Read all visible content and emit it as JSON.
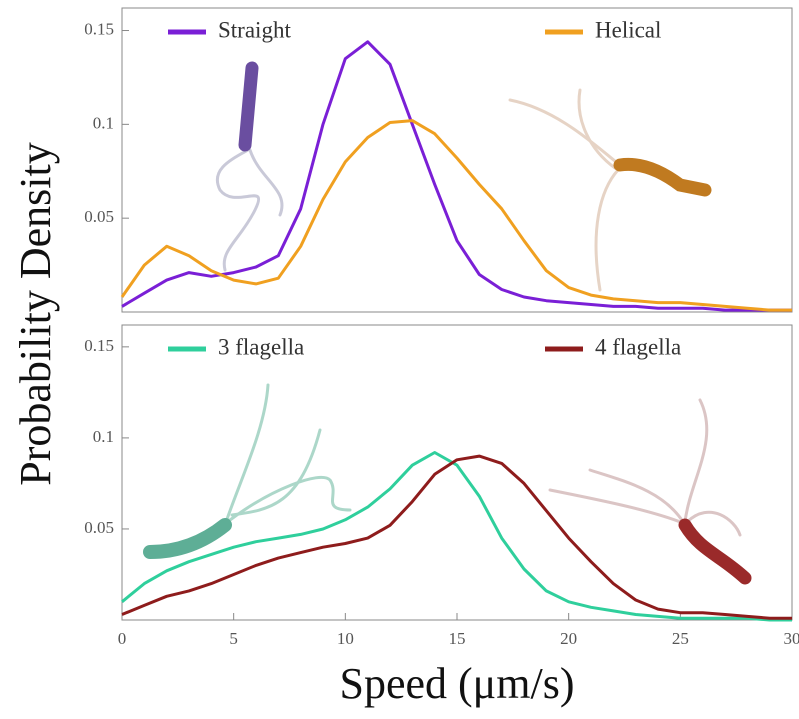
{
  "chart_data": [
    {
      "type": "line",
      "ylabel": "Probability Density",
      "x": [
        0,
        1,
        2,
        3,
        4,
        5,
        6,
        7,
        8,
        9,
        10,
        11,
        12,
        13,
        14,
        15,
        16,
        17,
        18,
        19,
        20,
        21,
        22,
        23,
        24,
        25,
        26,
        27,
        28,
        29,
        30
      ],
      "series": [
        {
          "name": "Straight",
          "color": "#7a1fd6",
          "values": [
            0.003,
            0.01,
            0.017,
            0.021,
            0.019,
            0.021,
            0.024,
            0.03,
            0.055,
            0.1,
            0.135,
            0.144,
            0.132,
            0.1,
            0.068,
            0.038,
            0.02,
            0.012,
            0.008,
            0.006,
            0.005,
            0.004,
            0.003,
            0.003,
            0.002,
            0.002,
            0.002,
            0.001,
            0.001,
            0.001,
            0.001
          ]
        },
        {
          "name": "Helical",
          "color": "#f0a020",
          "values": [
            0.008,
            0.025,
            0.035,
            0.03,
            0.022,
            0.017,
            0.015,
            0.018,
            0.035,
            0.06,
            0.08,
            0.093,
            0.101,
            0.102,
            0.095,
            0.082,
            0.068,
            0.055,
            0.038,
            0.022,
            0.013,
            0.009,
            0.007,
            0.006,
            0.005,
            0.005,
            0.004,
            0.003,
            0.002,
            0.001,
            0.001
          ]
        }
      ],
      "xlim": [
        0,
        30
      ],
      "ylim": [
        0,
        0.162
      ],
      "yticks": [
        0.05,
        0.1,
        0.15
      ]
    },
    {
      "type": "line",
      "xlabel": "Speed (μm/s)",
      "x": [
        0,
        1,
        2,
        3,
        4,
        5,
        6,
        7,
        8,
        9,
        10,
        11,
        12,
        13,
        14,
        15,
        16,
        17,
        18,
        19,
        20,
        21,
        22,
        23,
        24,
        25,
        26,
        27,
        28,
        29,
        30
      ],
      "series": [
        {
          "name": "3 flagella",
          "color": "#2fcf9c",
          "values": [
            0.01,
            0.02,
            0.027,
            0.032,
            0.036,
            0.04,
            0.043,
            0.045,
            0.047,
            0.05,
            0.055,
            0.062,
            0.072,
            0.085,
            0.092,
            0.085,
            0.068,
            0.045,
            0.028,
            0.016,
            0.01,
            0.007,
            0.005,
            0.003,
            0.002,
            0.001,
            0.001,
            0.001,
            0.001,
            0,
            0
          ]
        },
        {
          "name": "4 flagella",
          "color": "#8e1c1c",
          "values": [
            0.003,
            0.008,
            0.013,
            0.016,
            0.02,
            0.025,
            0.03,
            0.034,
            0.037,
            0.04,
            0.042,
            0.045,
            0.052,
            0.065,
            0.08,
            0.088,
            0.09,
            0.086,
            0.075,
            0.06,
            0.045,
            0.032,
            0.02,
            0.011,
            0.006,
            0.004,
            0.004,
            0.003,
            0.002,
            0.001,
            0.001
          ]
        }
      ],
      "xlim": [
        0,
        30
      ],
      "ylim": [
        0,
        0.162
      ],
      "yticks": [
        0.05,
        0.1,
        0.15
      ],
      "xticks": [
        0,
        5,
        10,
        15,
        20,
        25,
        30
      ]
    }
  ]
}
